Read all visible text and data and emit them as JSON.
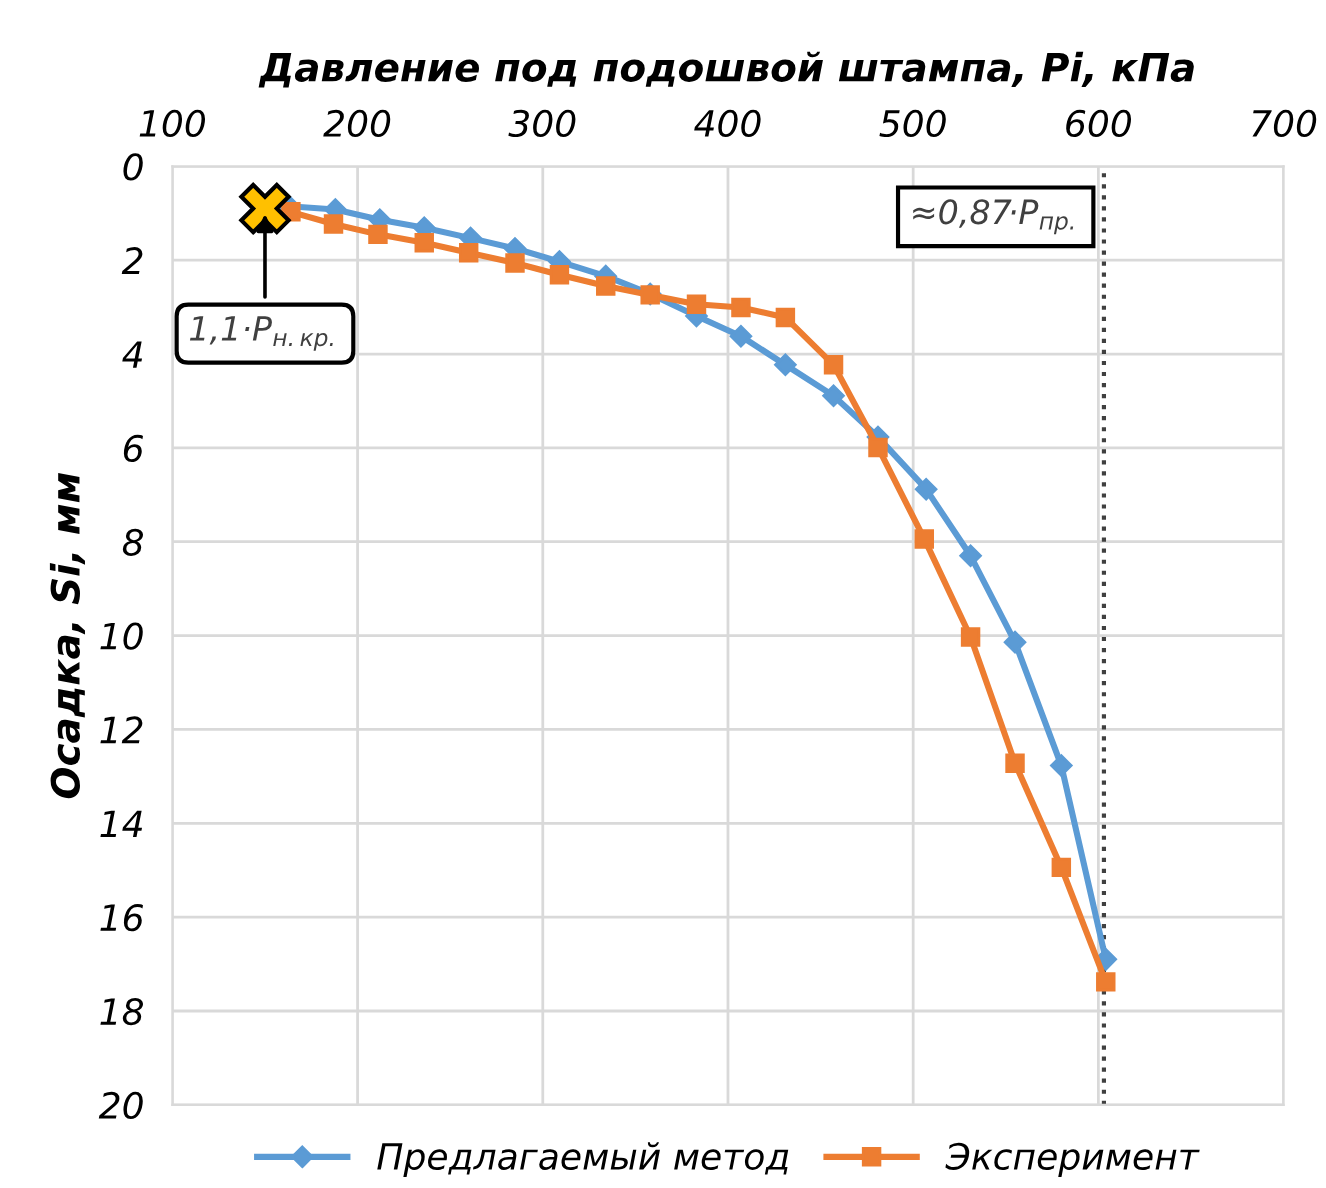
{
  "chart_data": {
    "type": "line",
    "xlabel": "Давление под подошвой штампа, Pi, кПа",
    "ylabel": "Осадка, Si, мм",
    "xlim": [
      100,
      700
    ],
    "xticks": [
      100,
      200,
      300,
      400,
      500,
      600,
      700
    ],
    "ylim": [
      20,
      0
    ],
    "yticks": [
      0,
      2,
      4,
      6,
      8,
      10,
      12,
      14,
      16,
      18,
      20
    ],
    "grid": true,
    "legend": "bottom",
    "line_style": "solid",
    "series": [
      {
        "name": "Предлагаемый метод",
        "color": "#5b9bd5",
        "marker": "diamond",
        "x": [
          163,
          188,
          212,
          236,
          261,
          285,
          309,
          334,
          358,
          383,
          407,
          431,
          457,
          481,
          507,
          531,
          555,
          580,
          604
        ],
        "values": [
          0.85,
          0.92,
          1.14,
          1.31,
          1.53,
          1.75,
          2.03,
          2.34,
          2.72,
          3.19,
          3.62,
          4.23,
          4.89,
          5.77,
          6.88,
          8.3,
          10.14,
          12.77,
          16.9
        ]
      },
      {
        "name": "Эксперимент",
        "color": "#ed7d31",
        "marker": "square",
        "x": [
          164,
          187,
          211,
          236,
          260,
          285,
          309,
          334,
          358,
          383,
          407,
          431,
          457,
          481,
          506,
          531,
          555,
          580,
          604
        ],
        "values": [
          0.97,
          1.23,
          1.45,
          1.63,
          1.84,
          2.06,
          2.31,
          2.55,
          2.74,
          2.94,
          3.01,
          3.22,
          4.23,
          5.99,
          7.94,
          10.03,
          12.72,
          14.94,
          17.38
        ]
      }
    ],
    "ref_lines": [
      {
        "axis": "x",
        "value": 603,
        "label": "≈0,87·P$_{пр.}$",
        "color": "#404040",
        "line_style": "dotted"
      }
    ],
    "annotations": [
      {
        "text": "1,1·P$_{н.кр.}$",
        "x": 150,
        "y": 0.9
      }
    ]
  }
}
